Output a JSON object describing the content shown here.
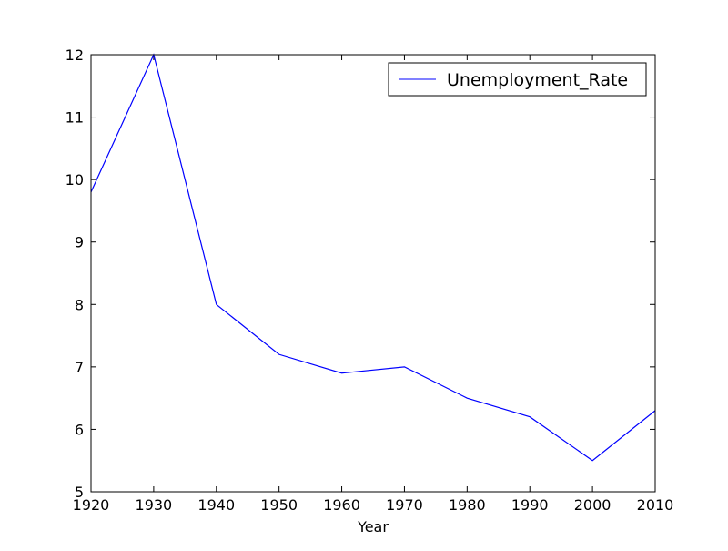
{
  "chart_data": {
    "type": "line",
    "title": "",
    "xlabel": "Year",
    "ylabel": "",
    "x": [
      1920,
      1930,
      1940,
      1950,
      1960,
      1970,
      1980,
      1990,
      2000,
      2010
    ],
    "series": [
      {
        "name": "Unemployment_Rate",
        "values": [
          9.8,
          12.0,
          8.0,
          7.2,
          6.9,
          7.0,
          6.5,
          6.2,
          5.5,
          6.3
        ],
        "color": "#0000ff"
      }
    ],
    "xlim": [
      1920,
      2010
    ],
    "ylim": [
      5,
      12
    ],
    "xticks": [
      1920,
      1930,
      1940,
      1950,
      1960,
      1970,
      1980,
      1990,
      2000,
      2010
    ],
    "yticks": [
      5,
      6,
      7,
      8,
      9,
      10,
      11,
      12
    ],
    "grid": false,
    "legend_position": "top-right"
  }
}
